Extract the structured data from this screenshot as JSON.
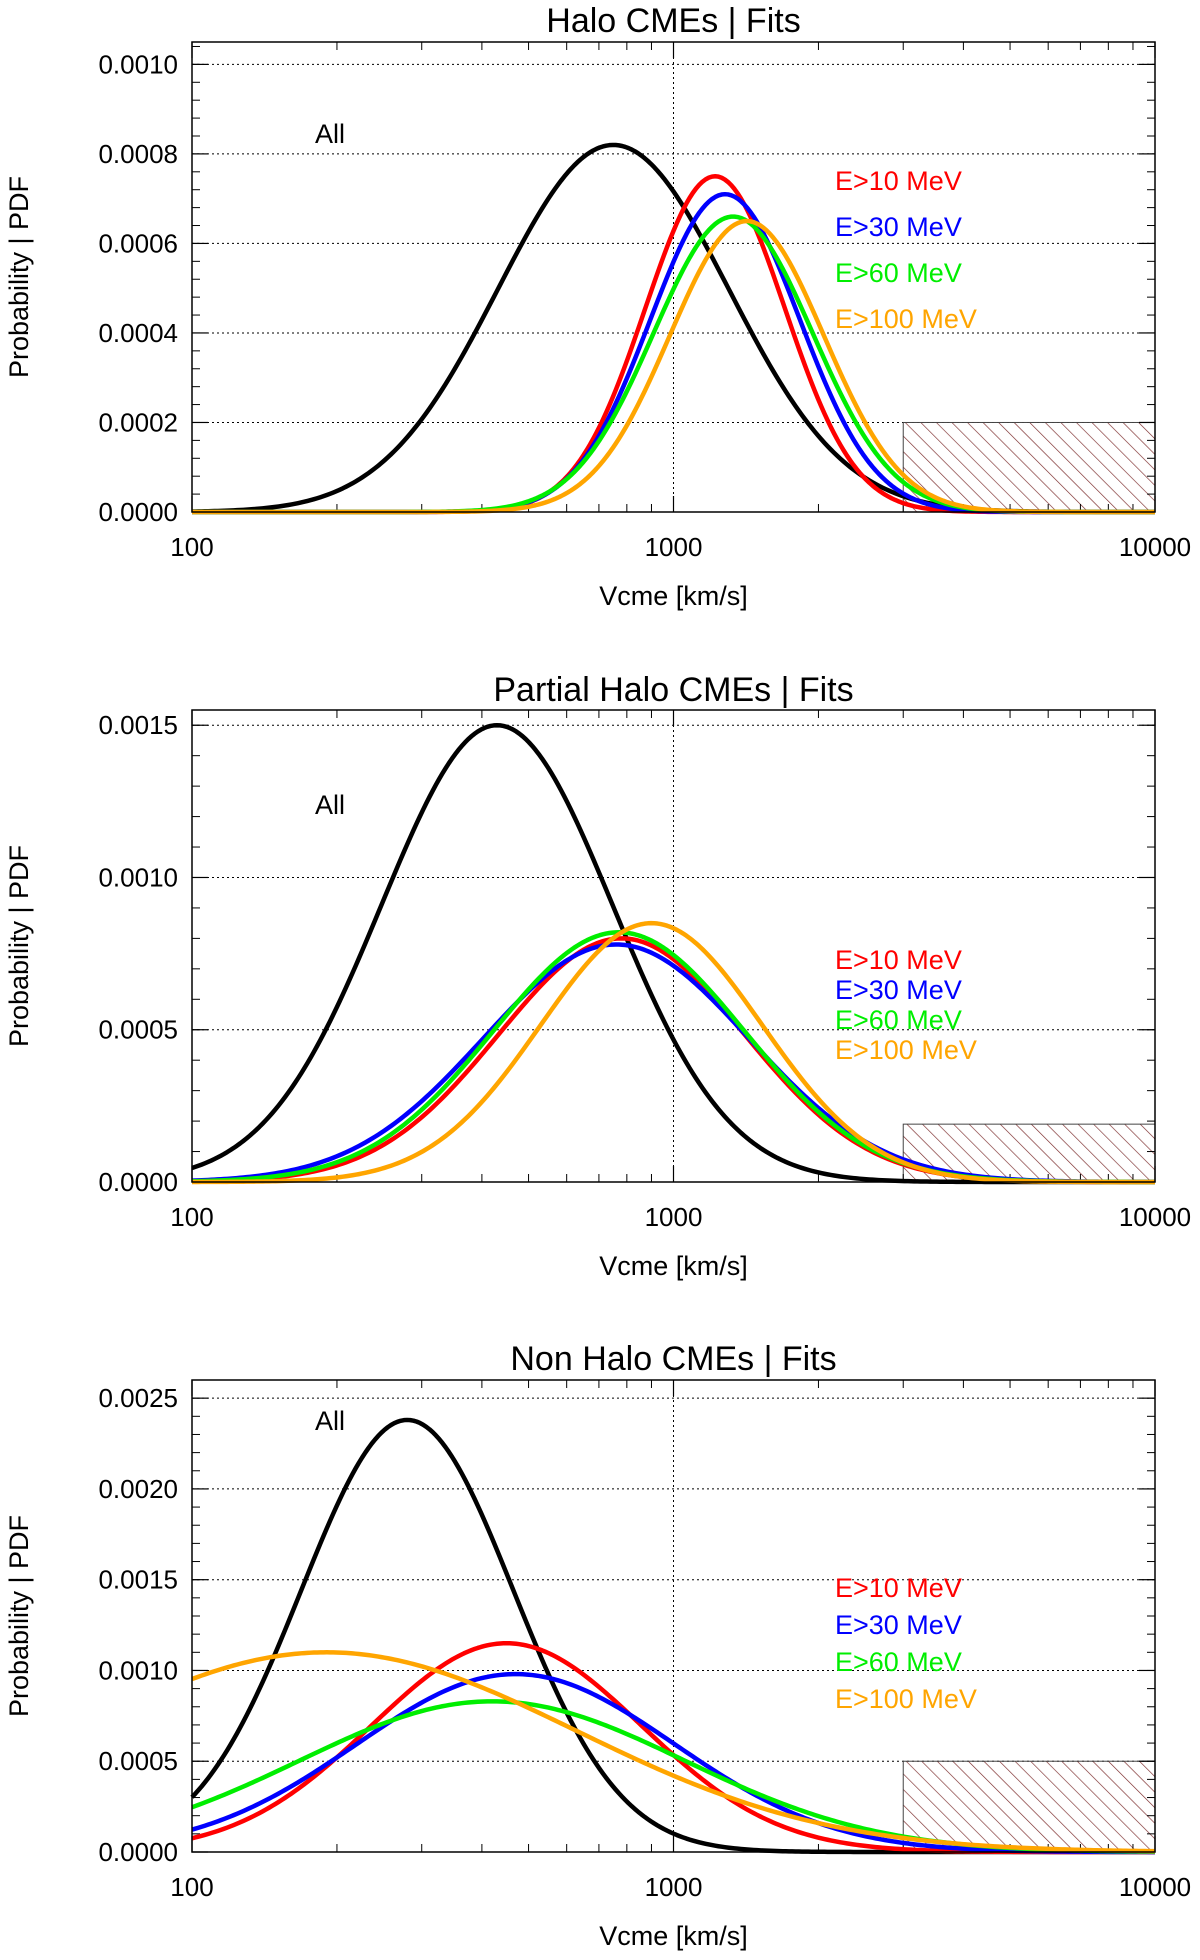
{
  "chart_data": [
    {
      "type": "line",
      "title": "Halo CMEs | Fits",
      "xlabel": "Vcme [km/s]",
      "ylabel": "Probability | PDF",
      "xscale": "log",
      "xlim": [
        100,
        10000
      ],
      "ylim": [
        0,
        0.00105
      ],
      "xticks": [
        100,
        1000,
        10000
      ],
      "xtick_labels": [
        "100",
        "1000",
        "10000"
      ],
      "yticks": [
        0,
        0.0002,
        0.0004,
        0.0006,
        0.0008,
        0.001
      ],
      "ytick_labels": [
        "0.0000",
        "0.0002",
        "0.0004",
        "0.0006",
        "0.0008",
        "0.0010"
      ],
      "grid": "horizontal dotted",
      "vline": 1000,
      "hatched_region": {
        "x": [
          3000,
          10000
        ],
        "y": [
          0,
          0.0002
        ]
      },
      "all_label": "All",
      "series": [
        {
          "name": "All",
          "color": "#000000",
          "peak_x": 750,
          "peak_y": 0.00082,
          "sigma_log10": 0.24
        },
        {
          "name": "E>10 MeV",
          "color": "#ff0000",
          "peak_x": 1220,
          "peak_y": 0.00075,
          "sigma_log10": 0.145
        },
        {
          "name": "E>30 MeV",
          "color": "#0000ff",
          "peak_x": 1280,
          "peak_y": 0.00071,
          "sigma_log10": 0.155
        },
        {
          "name": "E>60 MeV",
          "color": "#00ee00",
          "peak_x": 1330,
          "peak_y": 0.00066,
          "sigma_log10": 0.165
        },
        {
          "name": "E>100 MeV",
          "color": "#ffa500",
          "peak_x": 1420,
          "peak_y": 0.00065,
          "sigma_log10": 0.16
        }
      ]
    },
    {
      "type": "line",
      "title": "Partial Halo CMEs | Fits",
      "xlabel": "Vcme [km/s]",
      "ylabel": "Probability | PDF",
      "xscale": "log",
      "xlim": [
        100,
        10000
      ],
      "ylim": [
        0,
        0.00155
      ],
      "xticks": [
        100,
        1000,
        10000
      ],
      "xtick_labels": [
        "100",
        "1000",
        "10000"
      ],
      "yticks": [
        0,
        0.0005,
        0.001,
        0.0015
      ],
      "ytick_labels": [
        "0.0000",
        "0.0005",
        "0.0010",
        "0.0015"
      ],
      "grid": "horizontal dotted",
      "vline": 1000,
      "hatched_region": {
        "x": [
          3000,
          10000
        ],
        "y": [
          0,
          0.00019
        ]
      },
      "all_label": "All",
      "series": [
        {
          "name": "All",
          "color": "#000000",
          "peak_x": 430,
          "peak_y": 0.0015,
          "sigma_log10": 0.24
        },
        {
          "name": "E>10 MeV",
          "color": "#ff0000",
          "peak_x": 780,
          "peak_y": 0.0008,
          "sigma_log10": 0.255
        },
        {
          "name": "E>30 MeV",
          "color": "#0000ff",
          "peak_x": 760,
          "peak_y": 0.00078,
          "sigma_log10": 0.275
        },
        {
          "name": "E>60 MeV",
          "color": "#00ee00",
          "peak_x": 770,
          "peak_y": 0.00082,
          "sigma_log10": 0.26
        },
        {
          "name": "E>100 MeV",
          "color": "#ffa500",
          "peak_x": 900,
          "peak_y": 0.00085,
          "sigma_log10": 0.23
        }
      ]
    },
    {
      "type": "line",
      "title": "Non Halo CMEs | Fits",
      "xlabel": "Vcme [km/s]",
      "ylabel": "Probability | PDF",
      "xscale": "log",
      "xlim": [
        100,
        10000
      ],
      "ylim": [
        0,
        0.0026
      ],
      "xticks": [
        100,
        1000,
        10000
      ],
      "xtick_labels": [
        "100",
        "1000",
        "10000"
      ],
      "yticks": [
        0,
        0.0005,
        0.001,
        0.0015,
        0.002,
        0.0025
      ],
      "ytick_labels": [
        "0.0000",
        "0.0005",
        "0.0010",
        "0.0015",
        "0.0020",
        "0.0025"
      ],
      "grid": "horizontal dotted",
      "vline": 1000,
      "hatched_region": {
        "x": [
          3000,
          10000
        ],
        "y": [
          0,
          0.0005
        ]
      },
      "all_label": "All",
      "series": [
        {
          "name": "All",
          "color": "#000000",
          "peak_x": 280,
          "peak_y": 0.00238,
          "sigma_log10": 0.22
        },
        {
          "name": "E>10 MeV",
          "color": "#ff0000",
          "peak_x": 450,
          "peak_y": 0.00115,
          "sigma_log10": 0.28
        },
        {
          "name": "E>30 MeV",
          "color": "#0000ff",
          "peak_x": 470,
          "peak_y": 0.00098,
          "sigma_log10": 0.33
        },
        {
          "name": "E>60 MeV",
          "color": "#00ee00",
          "peak_x": 420,
          "peak_y": 0.00083,
          "sigma_log10": 0.4
        },
        {
          "name": "E>100 MeV",
          "color": "#ffa500",
          "peak_x": 190,
          "peak_y": 0.0011,
          "sigma_log10": 0.52
        }
      ]
    }
  ]
}
